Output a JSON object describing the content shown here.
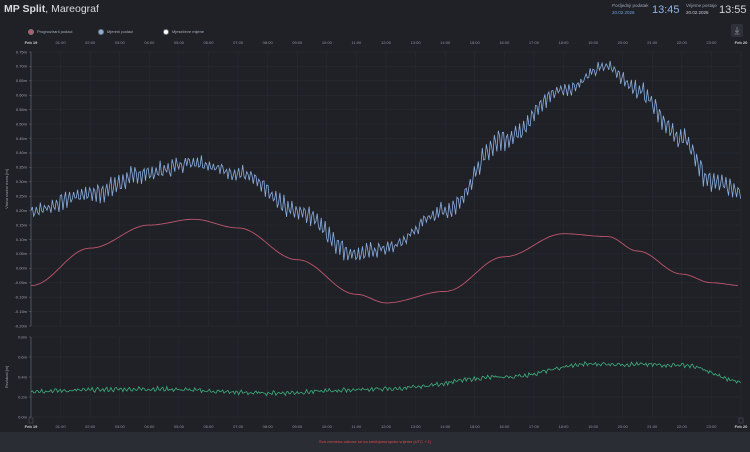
{
  "header": {
    "title_bold": "MP Split",
    "title_rest": ", Mareograf",
    "last_data": {
      "label": "Posljednji podatak",
      "date": "20.02.2026",
      "time": "13:45"
    },
    "page_time": {
      "label": "Vrijeme postaje",
      "date": "20.02.2026",
      "time": "13:55"
    },
    "download_icon": "download-icon"
  },
  "legend": [
    {
      "label": "Prognozirani podaci",
      "color": "#c0566b"
    },
    {
      "label": "Mjereni podaci",
      "color": "#8aaee0"
    },
    {
      "label": "Mjesečeve mijene",
      "color": "#ffffff"
    }
  ],
  "x_ticks": [
    "Feb 19",
    "01:00",
    "02:00",
    "03:00",
    "04:00",
    "05:00",
    "06:00",
    "07:00",
    "08:00",
    "09:00",
    "10:00",
    "11:00",
    "12:00",
    "13:00",
    "14:00",
    "15:00",
    "16:00",
    "17:00",
    "18:00",
    "19:00",
    "20:00",
    "21:00",
    "22:00",
    "23:00",
    "Feb 20"
  ],
  "footer": {
    "message": "Sva vremena odnose se na srednjoeuropsko vrijeme (UTC + 1)"
  },
  "chart_data": [
    {
      "type": "line",
      "title": "Visina razine mora",
      "ylabel": "Visina razine mora [m]",
      "xlabel": "",
      "ylim": [
        -0.2,
        0.75
      ],
      "y_ticks": [
        "0.75m",
        "0.70m",
        "0.65m",
        "0.60m",
        "0.55m",
        "0.50m",
        "0.45m",
        "0.40m",
        "0.35m",
        "0.30m",
        "0.25m",
        "0.20m",
        "0.15m",
        "0.10m",
        "0.05m",
        "0.00m",
        "-0.05m",
        "-0.10m",
        "-0.15m",
        "-0.20m"
      ],
      "x": [
        "00:00",
        "02:00",
        "04:00",
        "05:30",
        "07:00",
        "09:00",
        "11:00",
        "12:00",
        "14:00",
        "16:00",
        "18:00",
        "19:30",
        "20:30",
        "22:00",
        "23:00",
        "24:00"
      ],
      "series": [
        {
          "name": "Mjereni podaci",
          "color": "#8aaee0",
          "values": [
            0.2,
            0.26,
            0.33,
            0.37,
            0.33,
            0.2,
            0.05,
            0.07,
            0.2,
            0.45,
            0.62,
            0.7,
            0.62,
            0.45,
            0.3,
            0.27
          ]
        },
        {
          "name": "Prognozirani podaci",
          "color": "#c0566b",
          "values": [
            -0.06,
            0.07,
            0.15,
            0.17,
            0.14,
            0.03,
            -0.09,
            -0.12,
            -0.08,
            0.04,
            0.12,
            0.11,
            0.06,
            -0.02,
            -0.05,
            -0.06
          ]
        }
      ],
      "grid": true,
      "legend_position": "top"
    },
    {
      "type": "line",
      "title": "Rezidual",
      "ylabel": "Rezidual [m]",
      "ylim": [
        0.0,
        0.8
      ],
      "y_ticks": [
        "0.8m",
        "0.6m",
        "0.4m",
        "0.2m",
        "0.0m"
      ],
      "x": [
        "00:00",
        "04:00",
        "08:00",
        "12:00",
        "16:00",
        "19:00",
        "22:00",
        "24:00"
      ],
      "series": [
        {
          "name": "Rezidual",
          "color": "#3fae7d",
          "values": [
            0.26,
            0.28,
            0.24,
            0.28,
            0.4,
            0.53,
            0.52,
            0.36
          ]
        }
      ],
      "grid": true
    }
  ]
}
